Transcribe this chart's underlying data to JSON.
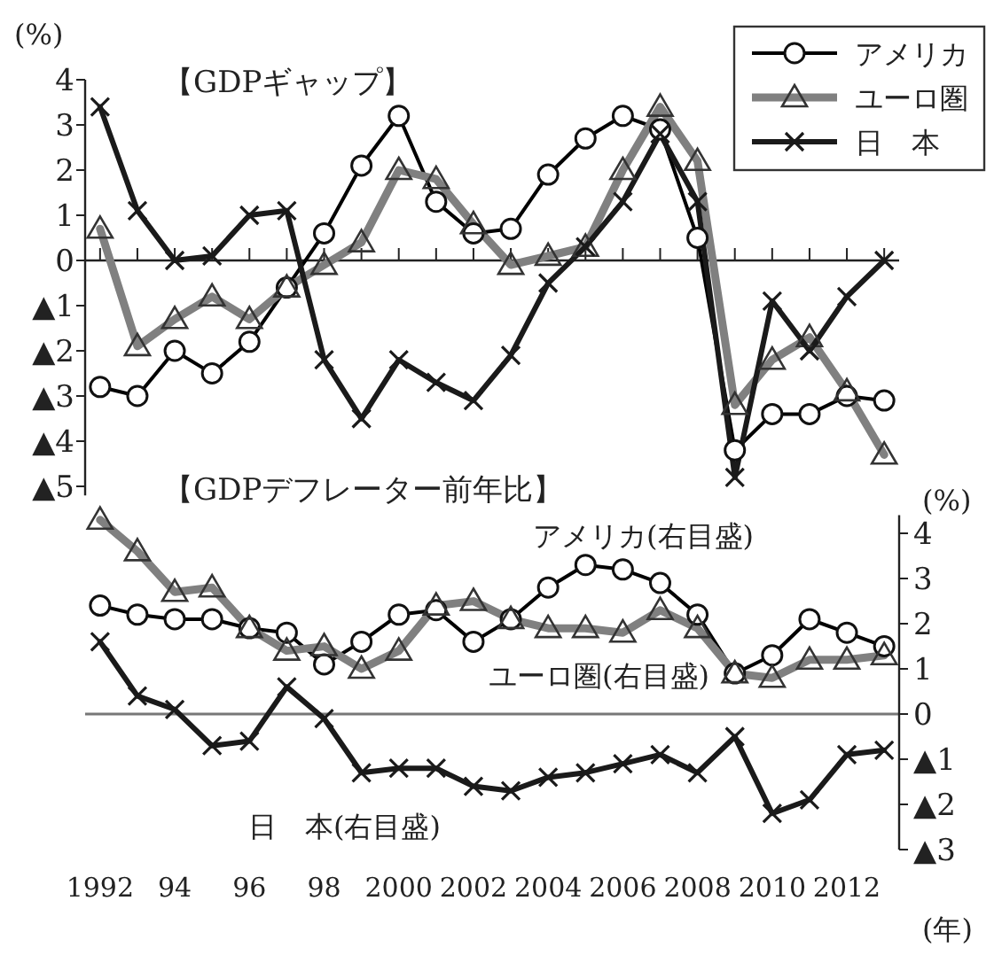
{
  "chart_data": [
    {
      "type": "line",
      "title": "【GDPギャップ】",
      "ylabel": "(%)",
      "legend": "top right",
      "tick_labels": "y",
      "x": [
        1992,
        1993,
        1994,
        1995,
        1996,
        1997,
        1998,
        1999,
        2000,
        2001,
        2002,
        2003,
        2004,
        2005,
        2006,
        2007,
        2008,
        2009,
        2010,
        2011,
        2012,
        2013
      ],
      "xlim": [
        1991.6,
        2013.4
      ],
      "xticks": [
        {
          "value": 1992,
          "label": null
        },
        {
          "value": 1993,
          "label": null
        },
        {
          "value": 1994,
          "label": null
        },
        {
          "value": 1995,
          "label": null
        },
        {
          "value": 1996,
          "label": null
        },
        {
          "value": 1997,
          "label": null
        },
        {
          "value": 1998,
          "label": null
        },
        {
          "value": 1999,
          "label": null
        },
        {
          "value": 2000,
          "label": null
        },
        {
          "value": 2001,
          "label": null
        },
        {
          "value": 2002,
          "label": null
        },
        {
          "value": 2003,
          "label": null
        },
        {
          "value": 2004,
          "label": null
        },
        {
          "value": 2005,
          "label": null
        },
        {
          "value": 2006,
          "label": null
        },
        {
          "value": 2007,
          "label": null
        },
        {
          "value": 2008,
          "label": null
        },
        {
          "value": 2009,
          "label": null
        },
        {
          "value": 2010,
          "label": null
        },
        {
          "value": 2011,
          "label": null
        },
        {
          "value": 2012,
          "label": null
        },
        {
          "value": 2013,
          "label": null
        }
      ],
      "ylim": [
        -5.2,
        4
      ],
      "yticks": [
        4,
        3,
        2,
        1,
        0,
        {
          "value": -1,
          "label": "▲1"
        },
        {
          "value": -2,
          "label": "▲2"
        },
        {
          "value": -3,
          "label": "▲3"
        },
        {
          "value": -4,
          "label": "▲4"
        },
        {
          "value": -5,
          "label": "▲5"
        }
      ],
      "series": [
        {
          "name": "アメリカ",
          "color": "#000000",
          "marker": "circle",
          "values": [
            -2.8,
            -3.0,
            -2.0,
            -2.5,
            -1.8,
            -0.6,
            0.6,
            2.1,
            3.2,
            1.3,
            0.6,
            0.7,
            1.9,
            2.7,
            3.2,
            2.9,
            0.5,
            -4.2,
            -3.4,
            -3.4,
            -3.0,
            -3.1
          ]
        },
        {
          "name": "ユーロ圏",
          "color": "#808080",
          "marker": "triangle",
          "values": [
            0.7,
            -1.9,
            -1.3,
            -0.8,
            -1.3,
            -0.6,
            -0.1,
            0.4,
            2.0,
            1.8,
            0.8,
            -0.1,
            0.1,
            0.3,
            2.0,
            3.4,
            2.2,
            -3.2,
            -2.2,
            -1.7,
            -2.9,
            -4.3
          ]
        },
        {
          "name": "日　本",
          "color": "#1a1a1a",
          "marker": "cross",
          "values": [
            3.4,
            1.1,
            0.0,
            0.1,
            1.0,
            1.1,
            -2.2,
            -3.5,
            -2.2,
            -2.7,
            -3.1,
            -2.1,
            -0.5,
            0.3,
            1.3,
            2.8,
            1.3,
            -4.8,
            -0.9,
            -2.0,
            -0.8,
            0.0
          ]
        }
      ]
    },
    {
      "type": "line",
      "title": "【GDPデフレーター前年比】",
      "y2label": "(%)",
      "xlabel": "(年)",
      "x": [
        1992,
        1993,
        1994,
        1995,
        1996,
        1997,
        1998,
        1999,
        2000,
        2001,
        2002,
        2003,
        2004,
        2005,
        2006,
        2007,
        2008,
        2009,
        2010,
        2011,
        2012,
        2013
      ],
      "xlim": [
        1991.6,
        2013.4
      ],
      "xticks": [
        1992,
        {
          "value": 1994,
          "label": "94"
        },
        {
          "value": 1996,
          "label": "96"
        },
        {
          "value": 1998,
          "label": "98"
        },
        2000,
        2002,
        2004,
        2006,
        2008,
        2010,
        2012
      ],
      "y2lim": [
        -3,
        4.4
      ],
      "y2ticks": [
        4,
        3,
        2,
        1,
        0,
        {
          "value": -1,
          "label": "▲1"
        },
        {
          "value": -2,
          "label": "▲2"
        },
        {
          "value": -3,
          "label": "▲3"
        }
      ],
      "series": [
        {
          "name": "アメリカ(右目盛)",
          "axis": "y2",
          "color": "#000000",
          "marker": "circle",
          "values": [
            2.4,
            2.2,
            2.1,
            2.1,
            1.9,
            1.8,
            1.1,
            1.6,
            2.2,
            2.3,
            1.6,
            2.1,
            2.8,
            3.3,
            3.2,
            2.9,
            2.2,
            0.9,
            1.3,
            2.1,
            1.8,
            1.5
          ]
        },
        {
          "name": "ユーロ圏(右目盛)",
          "axis": "y2",
          "color": "#808080",
          "marker": "triangle",
          "values": [
            4.3,
            3.6,
            2.7,
            2.8,
            1.9,
            1.4,
            1.5,
            1.0,
            1.4,
            2.4,
            2.5,
            2.1,
            1.9,
            1.9,
            1.8,
            2.3,
            1.9,
            0.9,
            0.8,
            1.2,
            1.2,
            1.3
          ]
        },
        {
          "name": "日　本(右目盛)",
          "axis": "y2",
          "color": "#1a1a1a",
          "marker": "cross",
          "values": [
            1.6,
            0.4,
            0.1,
            -0.7,
            -0.6,
            0.6,
            -0.1,
            -1.3,
            -1.2,
            -1.2,
            -1.6,
            -1.7,
            -1.4,
            -1.3,
            -1.1,
            -0.9,
            -1.3,
            -0.5,
            -2.2,
            -1.9,
            -0.9,
            -0.8
          ]
        }
      ]
    }
  ]
}
